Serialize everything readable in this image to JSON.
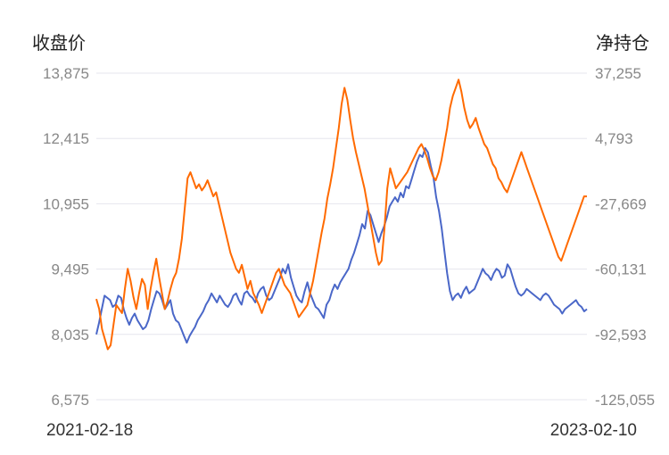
{
  "chart_data": {
    "type": "line",
    "x_start": "2021-02-18",
    "x_end": "2023-02-10",
    "left_axis": {
      "title": "收盘价",
      "ticks": [
        "13,875",
        "12,415",
        "10,955",
        "9,495",
        "8,035",
        "6,575"
      ],
      "ylim": [
        6575,
        13875
      ]
    },
    "right_axis": {
      "title": "净持仓",
      "ticks": [
        "37,255",
        "4,793",
        "-27,669",
        "-60,131",
        "-92,593",
        "-125,055"
      ],
      "ylim": [
        -125055,
        37255
      ]
    },
    "grid": true,
    "series": [
      {
        "axis": "left",
        "color": "#4a67c8",
        "values": [
          8035,
          8300,
          8600,
          8900,
          8850,
          8800,
          8650,
          8700,
          8900,
          8850,
          8600,
          8400,
          8250,
          8400,
          8500,
          8350,
          8250,
          8150,
          8200,
          8350,
          8600,
          8800,
          9000,
          8950,
          8800,
          8600,
          8700,
          8800,
          8500,
          8350,
          8300,
          8150,
          8000,
          7850,
          8000,
          8100,
          8200,
          8350,
          8450,
          8550,
          8700,
          8800,
          8950,
          8850,
          8750,
          8900,
          8800,
          8700,
          8650,
          8750,
          8900,
          8950,
          8800,
          8700,
          8950,
          9000,
          8900,
          8850,
          8750,
          8950,
          9050,
          9100,
          8900,
          8800,
          8850,
          9000,
          9150,
          9300,
          9500,
          9400,
          9600,
          9300,
          9100,
          8900,
          8800,
          8750,
          9000,
          9200,
          8950,
          8800,
          8650,
          8600,
          8500,
          8400,
          8700,
          8800,
          9000,
          9150,
          9050,
          9200,
          9300,
          9400,
          9500,
          9700,
          9850,
          10050,
          10250,
          10500,
          10400,
          10800,
          10700,
          10500,
          10300,
          10100,
          10300,
          10450,
          10650,
          10900,
          11000,
          11100,
          11000,
          11200,
          11100,
          11350,
          11300,
          11500,
          11700,
          11900,
          12050,
          12000,
          12200,
          12100,
          11800,
          11550,
          11100,
          10800,
          10400,
          9900,
          9400,
          9000,
          8800,
          8900,
          8950,
          8850,
          9000,
          9100,
          8950,
          9000,
          9050,
          9200,
          9350,
          9500,
          9400,
          9350,
          9250,
          9400,
          9500,
          9450,
          9300,
          9350,
          9600,
          9500,
          9300,
          9100,
          8950,
          8900,
          8950,
          9050,
          9000,
          8950,
          8900,
          8850,
          8800,
          8900,
          8950,
          8900,
          8800,
          8700,
          8650,
          8600,
          8500,
          8600,
          8650,
          8700,
          8750,
          8800,
          8700,
          8650,
          8550,
          8600
        ]
      },
      {
        "axis": "right",
        "color": "#ff6a00",
        "values": [
          -75000,
          -80000,
          -90000,
          -95000,
          -100000,
          -98000,
          -88000,
          -78000,
          -80000,
          -82000,
          -70000,
          -60000,
          -66000,
          -74000,
          -80000,
          -72000,
          -65000,
          -68000,
          -80000,
          -70000,
          -62000,
          -55000,
          -64000,
          -72000,
          -80000,
          -76000,
          -70000,
          -65000,
          -62000,
          -55000,
          -45000,
          -30000,
          -15000,
          -12000,
          -16000,
          -20000,
          -18000,
          -21000,
          -19000,
          -16000,
          -20000,
          -24000,
          -22000,
          -28000,
          -34000,
          -40000,
          -46000,
          -52000,
          -56000,
          -60000,
          -62000,
          -58000,
          -64000,
          -70000,
          -66000,
          -72000,
          -75000,
          -78000,
          -82000,
          -78000,
          -74000,
          -70000,
          -66000,
          -62000,
          -60000,
          -64000,
          -68000,
          -70000,
          -72000,
          -76000,
          -80000,
          -84000,
          -82000,
          -80000,
          -78000,
          -72000,
          -66000,
          -58000,
          -50000,
          -42000,
          -35000,
          -25000,
          -18000,
          -10000,
          0,
          10000,
          22000,
          30000,
          24000,
          14000,
          5000,
          -2000,
          -8000,
          -14000,
          -20000,
          -28000,
          -36000,
          -44000,
          -52000,
          -58000,
          -56000,
          -40000,
          -20000,
          -10000,
          -15000,
          -20000,
          -18000,
          -16000,
          -14000,
          -12000,
          -9000,
          -6000,
          -3000,
          0,
          2000,
          -1000,
          -5000,
          -10000,
          -14000,
          -16000,
          -12000,
          -6000,
          2000,
          10000,
          20000,
          26000,
          30000,
          34000,
          28000,
          20000,
          14000,
          10000,
          12000,
          15000,
          10000,
          6000,
          2000,
          0,
          -4000,
          -8000,
          -10000,
          -15000,
          -17000,
          -20000,
          -22000,
          -18000,
          -14000,
          -10000,
          -6000,
          -2000,
          -6000,
          -10000,
          -14000,
          -18000,
          -22000,
          -26000,
          -30000,
          -34000,
          -38000,
          -42000,
          -46000,
          -50000,
          -54000,
          -56000,
          -52000,
          -48000,
          -44000,
          -40000,
          -36000,
          -32000,
          -28000,
          -24000,
          -24000
        ]
      }
    ]
  }
}
